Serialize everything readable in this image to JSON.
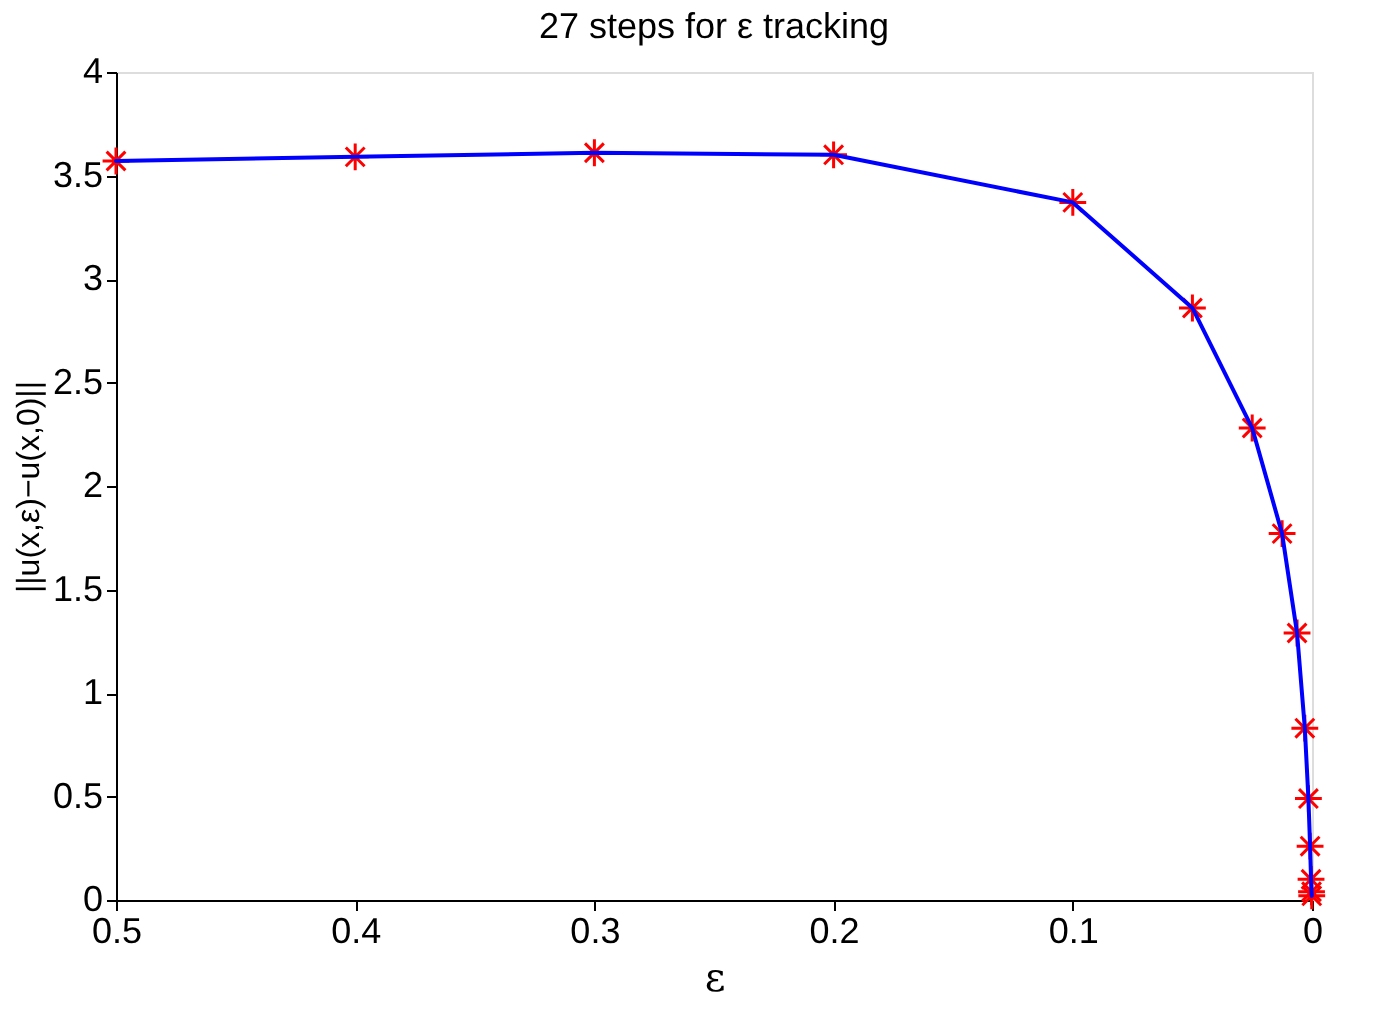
{
  "chart_data": {
    "type": "line",
    "title": "27 steps for ε tracking",
    "xlabel": "ε",
    "ylabel": "||u(x,ε)−u(x,0)||",
    "x": [
      0.5,
      0.4,
      0.3,
      0.2,
      0.1,
      0.05,
      0.025,
      0.0125,
      0.00625,
      0.003,
      0.0015,
      0.0008,
      0.0004,
      0.0002,
      0.0001
    ],
    "series": [
      {
        "type": "scatter",
        "color": "#ff0000",
        "marker": "cross",
        "values": [
          3.57,
          3.59,
          3.61,
          3.6,
          3.37,
          2.86,
          2.28,
          1.77,
          1.29,
          0.83,
          0.49,
          0.26,
          0.1,
          0.04,
          0.02
        ]
      },
      {
        "type": "line",
        "color": "#0000ff",
        "marker": "none",
        "line_style": "solid",
        "values": [
          3.57,
          3.59,
          3.61,
          3.6,
          3.37,
          2.86,
          2.28,
          1.77,
          1.29,
          0.83,
          0.49,
          0.26,
          0.1,
          0.04,
          0.02
        ]
      }
    ],
    "xlim": [
      0.5,
      0
    ],
    "xticks": [
      0.5,
      0.4,
      0.3,
      0.2,
      0.1,
      0
    ],
    "ylim": [
      0,
      4
    ],
    "yticks": [
      0,
      0.5,
      1,
      1.5,
      2,
      2.5,
      3,
      3.5,
      4
    ],
    "grid": false
  }
}
